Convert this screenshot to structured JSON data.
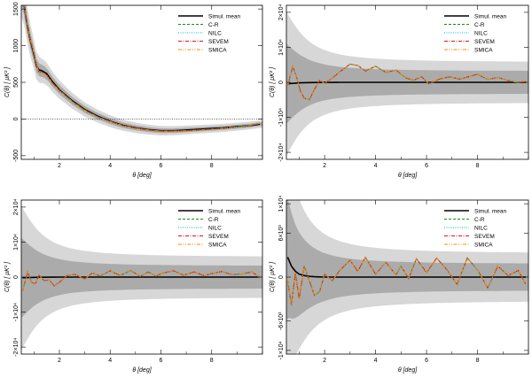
{
  "axis_text": {
    "xlabel": "θ [deg]",
    "ylabel": "C(θ) [ μK² ]"
  },
  "legend": [
    {
      "name": "Simul. mean",
      "color": "#000000",
      "dash": "",
      "width": 1.6
    },
    {
      "name": "C-R",
      "color": "#1a8a1a",
      "dash": "3,2",
      "width": 1.1
    },
    {
      "name": "NILC",
      "color": "#00b0e0",
      "dash": "1,1.5",
      "width": 1.1
    },
    {
      "name": "SEVEM",
      "color": "#e01020",
      "dash": "4,1.5,1,1.5",
      "width": 1.1
    },
    {
      "name": "SMICA",
      "color": "#f08c00",
      "dash": "4,1.5,1,1.5,1,1.5",
      "width": 1.1
    }
  ],
  "chart_data": [
    {
      "type": "line",
      "xlabel": "θ [deg]",
      "ylabel": "C(θ) [ μK² ]",
      "xlim": [
        0.5,
        10
      ],
      "ylim": [
        -550,
        1550
      ],
      "xticks": [
        2,
        4,
        6,
        8
      ],
      "yticks": [
        -500,
        0,
        500,
        1000,
        1500
      ],
      "ytick_labels": [
        "-500",
        "0",
        "500",
        "1000",
        "1500"
      ],
      "zero_line": true,
      "x": [
        0.55,
        0.7,
        0.85,
        1.0,
        1.1,
        1.2,
        1.3,
        1.5,
        1.7,
        2.0,
        2.5,
        3.0,
        3.5,
        4.0,
        4.5,
        5.0,
        5.5,
        6.0,
        6.5,
        7.0,
        7.5,
        8.0,
        8.5,
        9.0,
        9.5,
        9.9
      ],
      "series": [
        {
          "name": "Simul. mean",
          "values": [
            1700,
            1350,
            1080,
            880,
            720,
            670,
            660,
            620,
            520,
            400,
            250,
            130,
            40,
            -30,
            -85,
            -120,
            -145,
            -160,
            -160,
            -150,
            -140,
            -130,
            -120,
            -105,
            -90,
            -70
          ]
        },
        {
          "name": "C-R",
          "values": [
            1700,
            1360,
            1090,
            900,
            730,
            640,
            640,
            600,
            500,
            390,
            240,
            120,
            30,
            -35,
            -90,
            -125,
            -150,
            -165,
            -165,
            -160,
            -150,
            -140,
            -125,
            -110,
            -90,
            -60
          ]
        },
        {
          "name": "NILC",
          "values": [
            1700,
            1360,
            1090,
            900,
            730,
            640,
            640,
            600,
            500,
            390,
            240,
            120,
            30,
            -35,
            -90,
            -125,
            -150,
            -165,
            -165,
            -160,
            -150,
            -140,
            -125,
            -110,
            -90,
            -60
          ]
        },
        {
          "name": "SEVEM",
          "values": [
            1700,
            1360,
            1090,
            900,
            730,
            640,
            640,
            600,
            500,
            390,
            240,
            120,
            30,
            -35,
            -90,
            -125,
            -150,
            -165,
            -165,
            -160,
            -150,
            -140,
            -125,
            -110,
            -90,
            -60
          ]
        },
        {
          "name": "SMICA",
          "values": [
            1700,
            1360,
            1090,
            900,
            730,
            640,
            640,
            600,
            500,
            390,
            240,
            120,
            30,
            -35,
            -90,
            -125,
            -150,
            -165,
            -165,
            -160,
            -150,
            -140,
            -125,
            -110,
            -90,
            -60
          ]
        }
      ]
    },
    {
      "type": "line",
      "xlabel": "θ [deg]",
      "ylabel": "C(θ) [ μK² ]",
      "xlim": [
        0.5,
        10
      ],
      "ylim": [
        -22000,
        22000
      ],
      "xticks": [
        2,
        4,
        6,
        8
      ],
      "yticks": [
        -20000,
        -10000,
        0,
        10000,
        20000
      ],
      "ytick_labels": [
        "-2×10⁴",
        "-1×10⁴",
        "0",
        "1×10⁴",
        "2×10⁴"
      ],
      "zero_line": false,
      "x": [
        0.55,
        0.75,
        0.9,
        1.05,
        1.2,
        1.4,
        1.6,
        1.8,
        2.0,
        2.3,
        2.6,
        3.0,
        3.3,
        3.6,
        4.0,
        4.4,
        4.8,
        5.2,
        5.5,
        5.8,
        6.1,
        6.5,
        6.9,
        7.3,
        7.7,
        8.0,
        8.4,
        8.8,
        9.2,
        9.6,
        9.9
      ],
      "series": [
        {
          "name": "Simul. mean",
          "values": [
            -400,
            -300,
            -200,
            -150,
            -100,
            -80,
            -60,
            -40,
            -30,
            -20,
            -10,
            0,
            0,
            0,
            0,
            0,
            0,
            0,
            0,
            0,
            0,
            0,
            0,
            0,
            0,
            0,
            0,
            0,
            0,
            0,
            0
          ]
        },
        {
          "name": "C-R",
          "values": [
            -1000,
            4500,
            1500,
            -2500,
            -4500,
            -5000,
            -2000,
            500,
            -300,
            1200,
            3000,
            5200,
            4800,
            3200,
            4600,
            2800,
            3500,
            1200,
            600,
            1600,
            -400,
            900,
            1600,
            900,
            1700,
            2300,
            800,
            1400,
            500,
            0,
            300
          ]
        },
        {
          "name": "NILC",
          "values": [
            -1000,
            4500,
            1500,
            -2500,
            -4500,
            -5000,
            -2000,
            500,
            -300,
            1200,
            3000,
            5200,
            4800,
            3200,
            4600,
            2800,
            3500,
            1200,
            600,
            1600,
            -400,
            900,
            1600,
            900,
            1700,
            2300,
            800,
            1400,
            500,
            0,
            300
          ]
        },
        {
          "name": "SEVEM",
          "values": [
            -1000,
            4500,
            1500,
            -2500,
            -4500,
            -5000,
            -2000,
            500,
            -300,
            1200,
            3000,
            5200,
            4800,
            3200,
            4600,
            2800,
            3500,
            1200,
            600,
            1600,
            -400,
            900,
            1600,
            900,
            1700,
            2300,
            800,
            1400,
            500,
            0,
            300
          ]
        },
        {
          "name": "SMICA",
          "values": [
            -1000,
            4500,
            1500,
            -2500,
            -4500,
            -5000,
            -2000,
            500,
            -300,
            1200,
            3000,
            5200,
            4800,
            3200,
            4600,
            2800,
            3500,
            1200,
            600,
            1600,
            -400,
            900,
            1600,
            900,
            1700,
            2300,
            800,
            1400,
            500,
            0,
            300
          ]
        }
      ]
    },
    {
      "type": "line",
      "xlabel": "θ [deg]",
      "ylabel": "C(θ) [ μK² ]",
      "xlim": [
        0.5,
        10
      ],
      "ylim": [
        -22000,
        22000
      ],
      "xticks": [
        2,
        4,
        6,
        8
      ],
      "yticks": [
        -20000,
        -10000,
        0,
        10000,
        20000
      ],
      "ytick_labels": [
        "-2×10⁴",
        "-1×10⁴",
        "0",
        "1×10⁴",
        "2×10⁴"
      ],
      "zero_line": false,
      "x": [
        0.55,
        0.75,
        0.9,
        1.05,
        1.2,
        1.4,
        1.6,
        1.8,
        2.0,
        2.3,
        2.6,
        3.0,
        3.3,
        3.6,
        4.0,
        4.4,
        4.8,
        5.2,
        5.5,
        5.8,
        6.1,
        6.5,
        6.9,
        7.3,
        7.7,
        8.0,
        8.4,
        8.8,
        9.2,
        9.6,
        9.9
      ],
      "series": [
        {
          "name": "Simul. mean",
          "values": [
            -200,
            -150,
            -100,
            -80,
            -60,
            -40,
            -30,
            -20,
            -10,
            0,
            0,
            0,
            0,
            0,
            0,
            0,
            0,
            0,
            0,
            0,
            0,
            0,
            0,
            0,
            0,
            0,
            0,
            0,
            0,
            0,
            0
          ]
        },
        {
          "name": "C-R",
          "values": [
            -4000,
            1500,
            -1500,
            -2000,
            500,
            -1000,
            -800,
            -2500,
            -1500,
            400,
            800,
            -500,
            1200,
            300,
            1800,
            400,
            1900,
            200,
            1500,
            300,
            1200,
            1800,
            500,
            1500,
            400,
            1000,
            1600,
            700,
            900,
            1500,
            -200
          ]
        },
        {
          "name": "NILC",
          "values": [
            -4000,
            1500,
            -1500,
            -2000,
            500,
            -1000,
            -800,
            -2500,
            -1500,
            400,
            800,
            -500,
            1200,
            300,
            1800,
            400,
            1900,
            200,
            1500,
            300,
            1200,
            1800,
            500,
            1500,
            400,
            1000,
            1600,
            700,
            900,
            1500,
            -200
          ]
        },
        {
          "name": "SEVEM",
          "values": [
            -4000,
            1500,
            -1500,
            -2000,
            500,
            -1000,
            -800,
            -2500,
            -1500,
            400,
            800,
            -500,
            1200,
            300,
            1800,
            400,
            1900,
            200,
            1500,
            300,
            1200,
            1800,
            500,
            1500,
            400,
            1000,
            1600,
            700,
            900,
            1500,
            -200
          ]
        },
        {
          "name": "SMICA",
          "values": [
            -4000,
            1500,
            -1500,
            -2000,
            500,
            -1000,
            -800,
            -2500,
            -1500,
            400,
            800,
            -500,
            1200,
            300,
            1800,
            400,
            1900,
            200,
            1500,
            300,
            1200,
            1800,
            500,
            1500,
            400,
            1000,
            1600,
            700,
            900,
            1500,
            -200
          ]
        }
      ]
    },
    {
      "type": "line",
      "xlabel": "θ [deg]",
      "ylabel": "C(θ) [ μK² ]",
      "xlim": [
        0.5,
        10
      ],
      "ylim": [
        -10500,
        10500
      ],
      "xticks": [
        2,
        4,
        6,
        8
      ],
      "yticks": [
        -10000,
        -6000,
        0,
        6000,
        10000
      ],
      "ytick_labels": [
        "-1×10⁴",
        "-6×10³",
        "0",
        "6×10³",
        "1×10⁴"
      ],
      "zero_line": false,
      "x": [
        0.55,
        0.7,
        0.85,
        1.0,
        1.2,
        1.4,
        1.6,
        1.8,
        2.0,
        2.3,
        2.6,
        3.0,
        3.3,
        3.6,
        4.0,
        4.4,
        4.8,
        5.0,
        5.3,
        5.6,
        6.0,
        6.4,
        6.8,
        7.2,
        7.6,
        8.0,
        8.4,
        8.8,
        9.2,
        9.6,
        9.9
      ],
      "series": [
        {
          "name": "Simul. mean",
          "values": [
            2700,
            1500,
            800,
            400,
            200,
            100,
            50,
            20,
            0,
            0,
            0,
            0,
            0,
            0,
            0,
            0,
            0,
            0,
            0,
            0,
            0,
            0,
            0,
            0,
            0,
            0,
            0,
            0,
            0,
            0,
            0
          ]
        },
        {
          "name": "C-R",
          "values": [
            -500,
            -3800,
            600,
            -3000,
            1500,
            -500,
            -2500,
            -2000,
            400,
            -500,
            900,
            2300,
            800,
            2700,
            400,
            2000,
            300,
            1500,
            -200,
            2500,
            600,
            2600,
            1000,
            -1000,
            2600,
            1000,
            -1500,
            1500,
            200,
            900,
            -1000
          ]
        },
        {
          "name": "NILC",
          "values": [
            -500,
            -3800,
            600,
            -3000,
            1500,
            -500,
            -2500,
            -2000,
            400,
            -500,
            900,
            2300,
            800,
            2700,
            400,
            2000,
            300,
            1500,
            -200,
            2500,
            600,
            2600,
            1000,
            -1000,
            2600,
            1000,
            -1500,
            1500,
            200,
            900,
            -1000
          ]
        },
        {
          "name": "SEVEM",
          "values": [
            -500,
            -3800,
            600,
            -3000,
            1500,
            -500,
            -2500,
            -2000,
            400,
            -500,
            900,
            2300,
            800,
            2700,
            400,
            2000,
            300,
            1500,
            -200,
            2500,
            600,
            2600,
            1000,
            -1000,
            2600,
            1000,
            -1500,
            1500,
            200,
            900,
            -1000
          ]
        },
        {
          "name": "SMICA",
          "values": [
            -500,
            -3800,
            600,
            -3000,
            1500,
            -500,
            -2500,
            -2000,
            400,
            -500,
            900,
            2300,
            800,
            2700,
            400,
            2000,
            300,
            1500,
            -200,
            2500,
            600,
            2600,
            1000,
            -1000,
            2600,
            1000,
            -1500,
            1500,
            200,
            900,
            -1000
          ]
        }
      ]
    }
  ]
}
